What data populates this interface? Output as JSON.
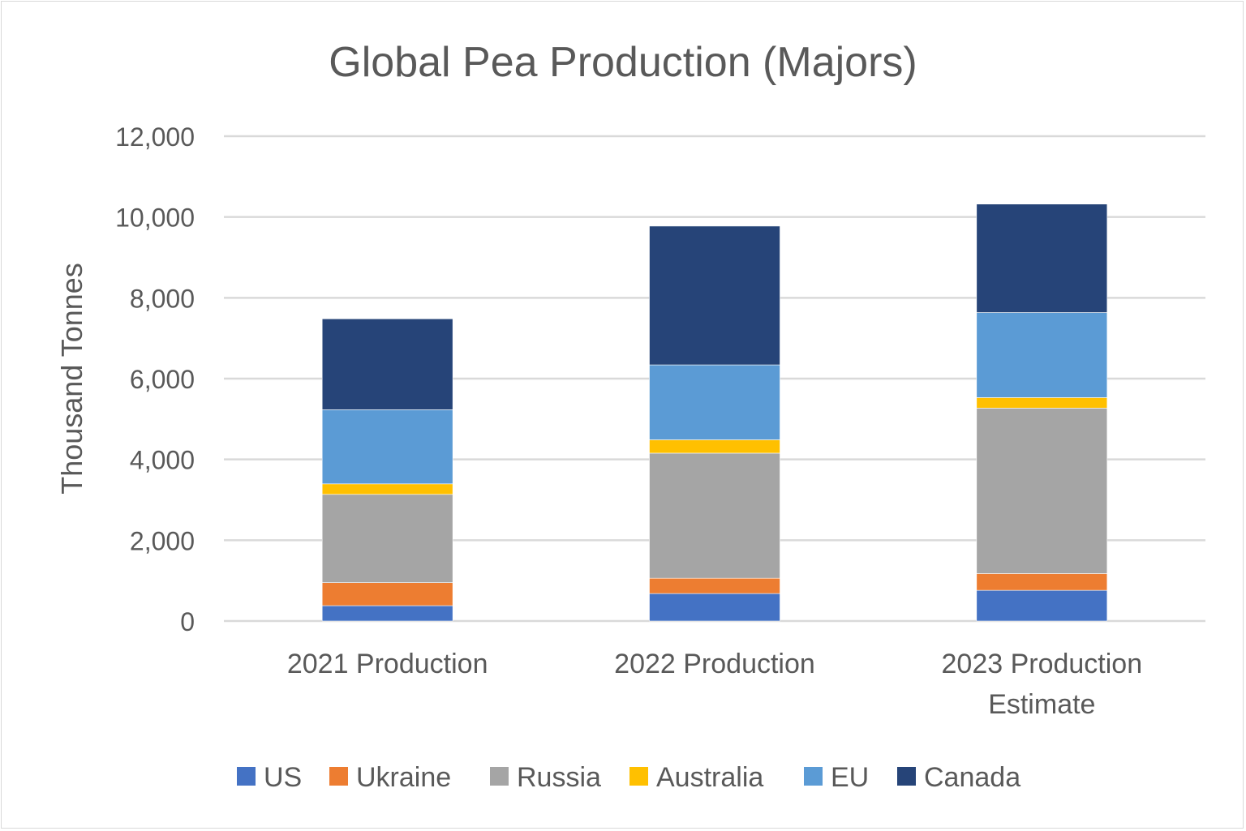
{
  "chart_data": {
    "type": "bar",
    "stacked": true,
    "title": "Global Pea Production (Majors)",
    "xlabel": "",
    "ylabel": "Thousand Tonnes",
    "ylim": [
      0,
      12000
    ],
    "yticks": [
      "0",
      "2,000",
      "4,000",
      "6,000",
      "8,000",
      "10,000",
      "12,000"
    ],
    "ytick_values": [
      0,
      2000,
      4000,
      6000,
      8000,
      10000,
      12000
    ],
    "grid": true,
    "legend_position": "bottom",
    "categories": [
      [
        "2021 Production"
      ],
      [
        "2022 Production"
      ],
      [
        "2023 Production",
        "Estimate"
      ]
    ],
    "series": [
      {
        "name": "US",
        "color": "#4472C4",
        "values": [
          380,
          680,
          760
        ]
      },
      {
        "name": "Ukraine",
        "color": "#ED7D31",
        "values": [
          570,
          380,
          415
        ]
      },
      {
        "name": "Russia",
        "color": "#A5A5A5",
        "values": [
          2185,
          3095,
          4095
        ]
      },
      {
        "name": "Australia",
        "color": "#FFC000",
        "values": [
          260,
          330,
          260
        ]
      },
      {
        "name": "EU",
        "color": "#5B9BD5",
        "values": [
          1835,
          1855,
          2105
        ]
      },
      {
        "name": "Canada",
        "color": "#264478",
        "values": [
          2250,
          3435,
          2685
        ]
      }
    ]
  }
}
